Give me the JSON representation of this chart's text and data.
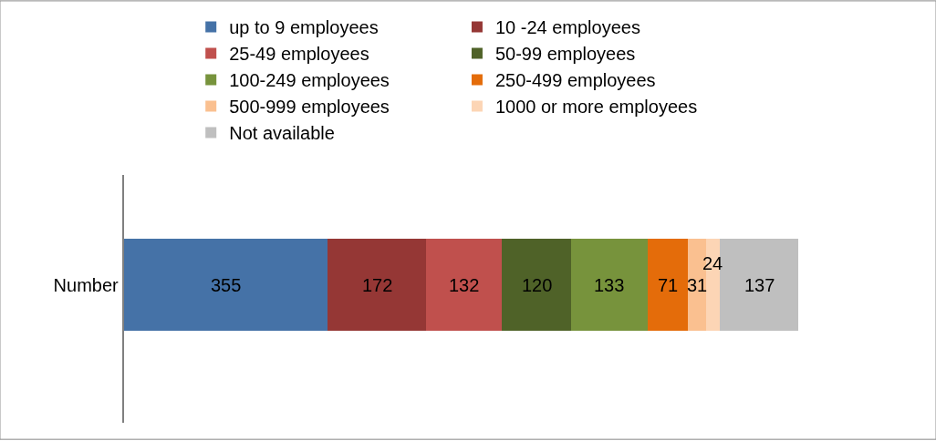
{
  "chart_data": {
    "type": "bar",
    "orientation": "horizontal",
    "stacked": true,
    "categories": [
      "Number"
    ],
    "series": [
      {
        "name": "up to 9 employees",
        "color": "#4572a7",
        "values": [
          355
        ]
      },
      {
        "name": "10 -24 employees",
        "color": "#953735",
        "values": [
          172
        ]
      },
      {
        "name": "25-49 employees",
        "color": "#c0504d",
        "values": [
          132
        ]
      },
      {
        "name": "50-99 employees",
        "color": "#4f6228",
        "values": [
          120
        ]
      },
      {
        "name": "100-249 employees",
        "color": "#77933c",
        "values": [
          133
        ]
      },
      {
        "name": "250-499 employees",
        "color": "#e46c0a",
        "values": [
          71
        ]
      },
      {
        "name": "500-999 employees",
        "color": "#fac090",
        "values": [
          31
        ]
      },
      {
        "name": "1000 or more employees",
        "color": "#fcd5b5",
        "values": [
          24
        ]
      },
      {
        "name": "Not available",
        "color": "#bfbfbf",
        "values": [
          137
        ]
      }
    ],
    "data_labels": true,
    "legend": "top"
  }
}
